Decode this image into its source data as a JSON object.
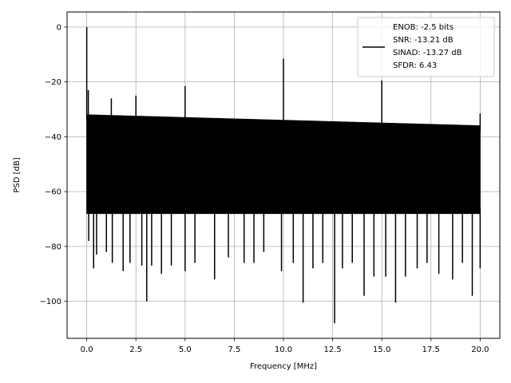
{
  "chart_data": {
    "type": "line",
    "title": "",
    "xlabel": "Frequency [MHz]",
    "ylabel": "PSD [dB]",
    "xlim": [
      -1.0,
      21.0
    ],
    "ylim": [
      -113.5,
      5.5
    ],
    "xticks": [
      0.0,
      2.5,
      5.0,
      7.5,
      10.0,
      12.5,
      15.0,
      17.5,
      20.0
    ],
    "xtick_labels": [
      "0.0",
      "2.5",
      "5.0",
      "7.5",
      "10.0",
      "12.5",
      "15.0",
      "17.5",
      "20.0"
    ],
    "yticks": [
      0,
      -20,
      -40,
      -60,
      -80,
      -100
    ],
    "ytick_labels": [
      "0",
      "−20",
      "−40",
      "−60",
      "−80",
      "−100"
    ],
    "grid": true,
    "series_color": "#000000",
    "legend": {
      "placement": "top-right",
      "lines": [
        "ENOB: -2.5 bits",
        "SNR: -13.21 dB",
        "SINAD: -13.27 dB",
        "SFDR: 6.43"
      ]
    },
    "noise_floor": {
      "x_start": 0.0,
      "x_end": 20.0,
      "upper_envelope": [
        [
          0.0,
          -32
        ],
        [
          5.0,
          -33
        ],
        [
          10.0,
          -34
        ],
        [
          15.0,
          -35
        ],
        [
          20.0,
          -36
        ]
      ],
      "lower_envelope": [
        [
          0.0,
          -68
        ],
        [
          20.0,
          -68
        ]
      ]
    },
    "peaks": [
      {
        "x": 0.0,
        "y": 0.0
      },
      {
        "x": 0.08,
        "y": -23
      },
      {
        "x": 1.25,
        "y": -26
      },
      {
        "x": 2.5,
        "y": -25
      },
      {
        "x": 5.0,
        "y": -21.5
      },
      {
        "x": 10.0,
        "y": -11.5
      },
      {
        "x": 15.0,
        "y": -19.5
      },
      {
        "x": 20.0,
        "y": -31.5
      }
    ],
    "dips": [
      {
        "x": 0.1,
        "y": -78
      },
      {
        "x": 0.35,
        "y": -88
      },
      {
        "x": 0.5,
        "y": -83
      },
      {
        "x": 1.0,
        "y": -82
      },
      {
        "x": 1.3,
        "y": -86
      },
      {
        "x": 1.85,
        "y": -89
      },
      {
        "x": 2.2,
        "y": -86
      },
      {
        "x": 2.8,
        "y": -87
      },
      {
        "x": 3.05,
        "y": -100
      },
      {
        "x": 3.3,
        "y": -87
      },
      {
        "x": 3.8,
        "y": -90
      },
      {
        "x": 4.3,
        "y": -87
      },
      {
        "x": 5.0,
        "y": -89
      },
      {
        "x": 5.5,
        "y": -86
      },
      {
        "x": 6.5,
        "y": -92
      },
      {
        "x": 7.2,
        "y": -84
      },
      {
        "x": 8.0,
        "y": -86
      },
      {
        "x": 8.5,
        "y": -86
      },
      {
        "x": 9.0,
        "y": -82
      },
      {
        "x": 9.9,
        "y": -89
      },
      {
        "x": 10.5,
        "y": -86
      },
      {
        "x": 11.0,
        "y": -100.5
      },
      {
        "x": 11.5,
        "y": -88
      },
      {
        "x": 12.0,
        "y": -86
      },
      {
        "x": 12.6,
        "y": -108
      },
      {
        "x": 13.0,
        "y": -88
      },
      {
        "x": 13.5,
        "y": -86
      },
      {
        "x": 14.1,
        "y": -98
      },
      {
        "x": 14.6,
        "y": -91
      },
      {
        "x": 15.2,
        "y": -91
      },
      {
        "x": 15.7,
        "y": -100.5
      },
      {
        "x": 16.2,
        "y": -91
      },
      {
        "x": 16.8,
        "y": -88
      },
      {
        "x": 17.3,
        "y": -86
      },
      {
        "x": 17.9,
        "y": -90
      },
      {
        "x": 18.6,
        "y": -92
      },
      {
        "x": 19.1,
        "y": -86
      },
      {
        "x": 19.6,
        "y": -98
      },
      {
        "x": 20.0,
        "y": -88
      }
    ]
  }
}
